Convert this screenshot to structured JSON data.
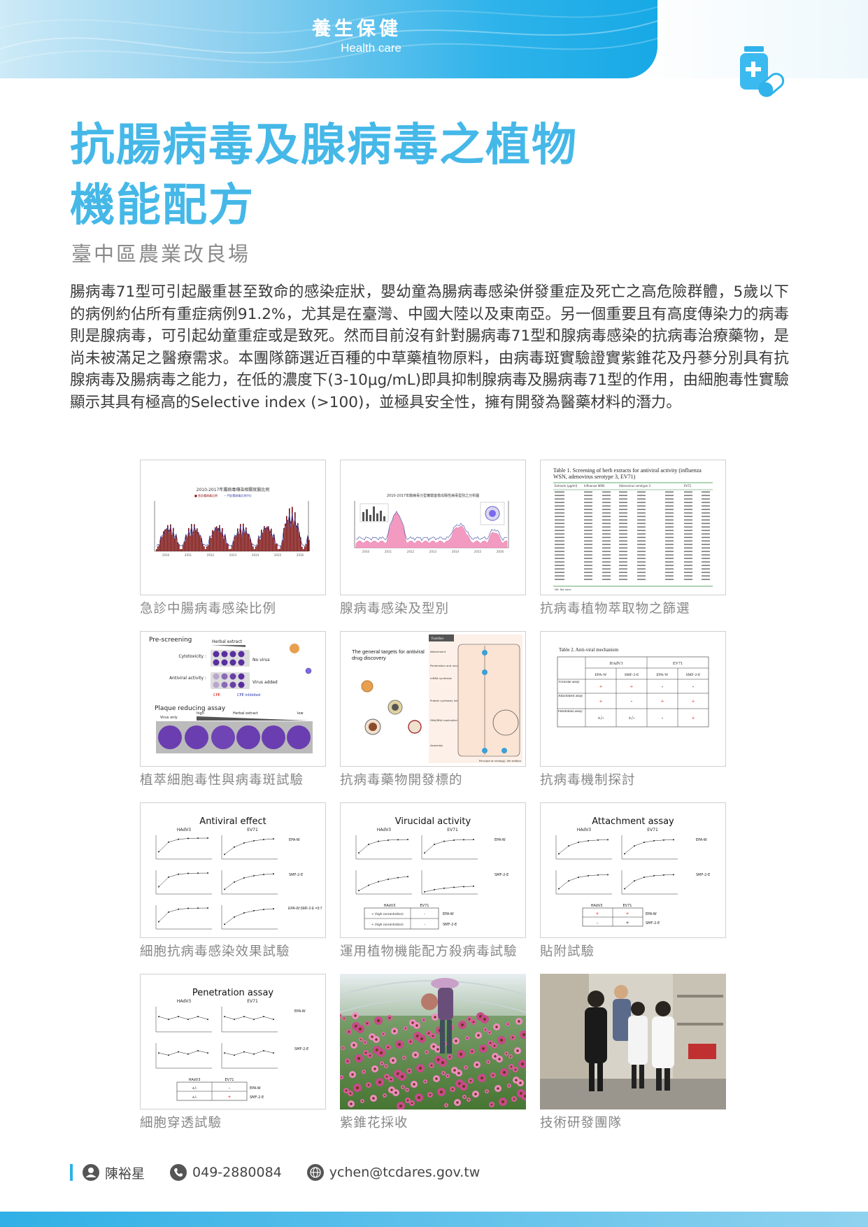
{
  "header": {
    "category_zh": "養生保健",
    "category_en": "Health care",
    "icon": "medicine-bottle-pill-icon",
    "accent": "#2fb3ea"
  },
  "article": {
    "title_line1": "抗腸病毒及腺病毒之植物",
    "title_line2": "機能配方",
    "organization": "臺中區農業改良場",
    "body": "腸病毒71型可引起嚴重甚至致命的感染症狀，嬰幼童為腸病毒感染併發重症及死亡之高危險群體，5歲以下的病例約佔所有重症病例91.2%，尤其是在臺灣、中國大陸以及東南亞。另一個重要且有高度傳染力的病毒則是腺病毒，可引起幼童重症或是致死。然而目前沒有針對腸病毒71型和腺病毒感染的抗病毒治療藥物，是尚未被滿足之醫療需求。本團隊篩選近百種的中草藥植物原料，由病毒斑實驗證實紫錐花及丹蔘分別具有抗腺病毒及腸病毒之能力，在低的濃度下(3-10μg/mL)即具抑制腺病毒及腸病毒71型的作用，由細胞毒性實驗顯示其具有極高的Selective index (>100)，並極具安全性，擁有開發為醫藥材料的潛力。"
  },
  "figures": {
    "f1": {
      "caption": "急診中腸病毒感染比例",
      "title": "2010-2017年腸病毒傳染相關就醫比例",
      "legend": [
        "■ 急診腸病毒比例",
        "─ 門診腸病毒比例(%)"
      ],
      "x_ticks": [
        "2010",
        "2011",
        "2012",
        "2013",
        "2014",
        "2015",
        "2016"
      ]
    },
    "f2": {
      "caption": "腺病毒感染及型別",
      "title": "2010-2017年腺病毒分型實驗室檢出陽性病毒型別之分析圖",
      "x_ticks": [
        "2010",
        "2011",
        "2012",
        "2013",
        "2014",
        "2015",
        "2016"
      ]
    },
    "f3": {
      "caption": "抗病毒植物萃取物之篩選",
      "table_title": "Table 1. Screening of herb extracts for antiviral activity (influenza WSN, adenovirus serotype 3, EV71)",
      "headers": [
        "Extracts (μg/ml)",
        "Influenza WSN",
        "Adenovirus serotype 3",
        "EV71"
      ],
      "footnote": "ND: Not done"
    },
    "f4": {
      "caption": "植萃細胞毒性與病毒斑試驗",
      "pre_screening": "Pre-screening",
      "herbal_extract": "Herbal extract",
      "cytotoxicity": "Cytotoxicity :",
      "no_virus": "No virus",
      "antiviral_activity": "Antiviral activity :",
      "virus_added": "Virus added",
      "cpe": "CPE",
      "cpe_inhibited": "CPE inhibited",
      "plaque_assay": "Plaque reducing assay",
      "virus_only": "Virus only",
      "high": "high",
      "low": "low"
    },
    "f5": {
      "caption": "抗病毒藥物開發標的",
      "heading": "The general targets for antiviral drug discovery",
      "side_title": "Function",
      "steps": [
        "Attachment",
        "Penetration and uncoating",
        "mRNA synthesis",
        "Protein synthesis Inhibition",
        "DNA/RNA replication",
        "Assembly"
      ],
      "footer": "Principle of virology, 4th edition"
    },
    "f6": {
      "caption": "抗病毒機制探討",
      "table_title": "Table 2. Anti-viral mechanism",
      "group_headers": [
        "HAdV3",
        "EV71"
      ],
      "col_headers": [
        "EPA-W",
        "SMF-2-E",
        "EPA-W",
        "SMF-2-E"
      ],
      "rows": [
        {
          "label": "Virucidal assay",
          "cells": [
            "+",
            "+",
            "-",
            "-"
          ]
        },
        {
          "label": "Attachment assay",
          "cells": [
            "+",
            "-",
            "+",
            "+"
          ]
        },
        {
          "label": "Penetration assay",
          "cells": [
            "+/-",
            "+/-",
            "-",
            "+"
          ]
        }
      ]
    },
    "f7": {
      "caption": "細胞抗病毒感染效果試驗",
      "title": "Antiviral effect",
      "col_labels": [
        "HAdV3",
        "EV71"
      ],
      "row_labels": [
        "EPA-W",
        "SMF-2-E",
        "EPA-W:SMF-2-E =3:7"
      ]
    },
    "f8": {
      "caption": "運用植物機能配方殺病毒試驗",
      "title": "Virucidal activity",
      "col_labels": [
        "HAdV3",
        "EV71"
      ],
      "row_labels": [
        "EPA-W",
        "SMF-2-E"
      ],
      "table_headers": [
        "HAdV3",
        "EV71"
      ],
      "table_rows": [
        [
          "+ (high concentration)",
          "-",
          "EPA-W"
        ],
        [
          "+ (high concentration)",
          "-",
          "SMF-2-E"
        ]
      ]
    },
    "f9": {
      "caption": "貼附試驗",
      "title": "Attachment assay",
      "col_labels": [
        "HAdV3",
        "EV71"
      ],
      "row_labels": [
        "EPA-W",
        "SMF-2-E"
      ],
      "table_headers": [
        "HAdV3",
        "EV71"
      ],
      "table_rows": [
        [
          "+",
          "+",
          "EPA-W"
        ],
        [
          "-",
          "+",
          "SMF-2-E"
        ]
      ]
    },
    "f10": {
      "caption": "細胞穿透試驗",
      "title": "Penetration assay",
      "col_labels": [
        "HAdV3",
        "EV71"
      ],
      "row_labels": [
        "EPA-W",
        "SMF-2-E"
      ],
      "table_headers": [
        "HAdV3",
        "EV71"
      ],
      "table_rows": [
        [
          "+/-",
          "-",
          "EPA-W"
        ],
        [
          "+/-",
          "+",
          "SMF-2-E"
        ]
      ]
    },
    "f11": {
      "caption": "紫錐花採收"
    },
    "f12": {
      "caption": "技術研發團隊"
    }
  },
  "contact": {
    "name": "陳裕星",
    "phone": "049-2880084",
    "email": "ychen@tcdares.gov.tw"
  }
}
